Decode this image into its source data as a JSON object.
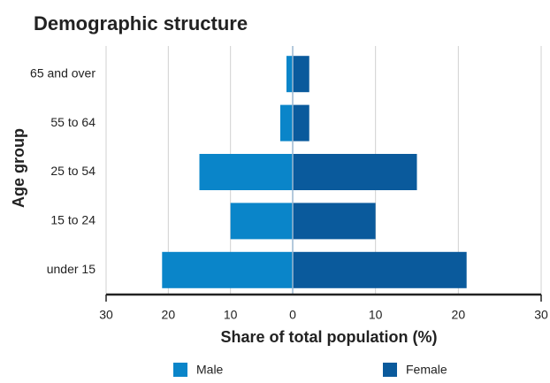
{
  "chart_data": {
    "type": "pyramid",
    "title": "Demographic structure",
    "xlabel": "Share of total population (%)",
    "ylabel": "Age group",
    "categories": [
      "65 and over",
      "55 to 64",
      "25 to 54",
      "15 to 24",
      "under 15"
    ],
    "series": [
      {
        "name": "Male",
        "color": "#0a85c9",
        "values": [
          -1,
          -2,
          -15,
          -10,
          -21
        ]
      },
      {
        "name": "Female",
        "color": "#0a5a9c",
        "values": [
          2,
          2,
          15,
          10,
          21
        ]
      }
    ],
    "xlim": [
      -30,
      30
    ],
    "xticks": [
      {
        "value": -30,
        "label": "30"
      },
      {
        "value": -20,
        "label": "20"
      },
      {
        "value": -10,
        "label": "10"
      },
      0,
      10,
      20,
      30
    ],
    "grid": true
  }
}
